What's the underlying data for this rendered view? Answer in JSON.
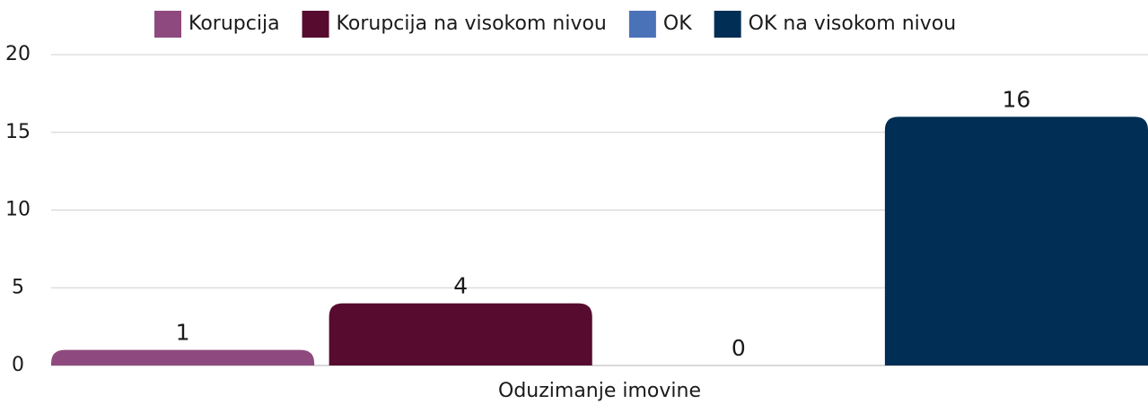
{
  "chart_data": {
    "type": "bar",
    "categories": [
      "Oduzimanje imovine"
    ],
    "series": [
      {
        "name": "Korupcija",
        "color": "#8e4a7e",
        "values": [
          1
        ]
      },
      {
        "name": "Korupcija na visokom nivou",
        "color": "#560b2f",
        "values": [
          4
        ]
      },
      {
        "name": "OK",
        "color": "#4a72b8",
        "values": [
          0
        ]
      },
      {
        "name": "OK na visokom nivou",
        "color": "#002e54",
        "values": [
          16
        ]
      }
    ],
    "ylim": [
      0,
      20
    ],
    "yticks": [
      0,
      5,
      10,
      15,
      20
    ],
    "grid": true,
    "legend": "top"
  }
}
